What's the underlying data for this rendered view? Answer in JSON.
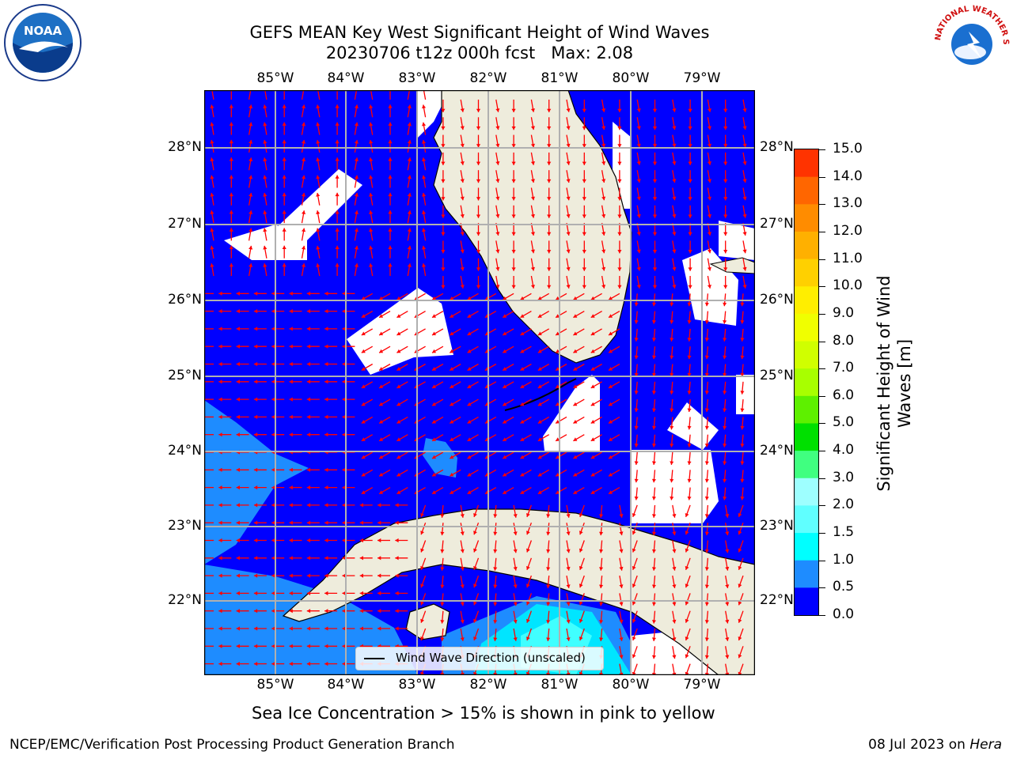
{
  "title": {
    "line1": "GEFS MEAN Key West Significant Height of Wind Waves",
    "line2": "20230706 t12z 000h fcst   Max: 2.08"
  },
  "map": {
    "lon_labels": [
      "85°W",
      "84°W",
      "83°W",
      "82°W",
      "81°W",
      "80°W",
      "79°W"
    ],
    "lat_labels": [
      "28°N",
      "27°N",
      "26°N",
      "25°N",
      "24°N",
      "23°N",
      "22°N"
    ],
    "legend_text": "Wind Wave Direction (unscaled)",
    "land_color": "#eeecdc",
    "ocean_color": "#0000ff",
    "arrow_color": "#ff0000",
    "grid_color": "#b0b0b0"
  },
  "colorbar": {
    "label": "Significant Height of Wind Waves [m]",
    "ticks": [
      "15.0",
      "14.0",
      "13.0",
      "12.0",
      "11.0",
      "10.0",
      "9.0",
      "8.0",
      "7.0",
      "6.0",
      "5.0",
      "4.0",
      "3.0",
      "2.0",
      "1.5",
      "1.0",
      "0.5",
      "0.0"
    ],
    "colors": [
      "#ff0000",
      "#ff2000",
      "#ff4000",
      "#ff6000",
      "#ff8000",
      "#ffa000",
      "#ffc000",
      "#ffe000",
      "#ffff00",
      "#e0ff00",
      "#c0ff00",
      "#a0ff00",
      "#60f000",
      "#30e000",
      "#00d000",
      "#00e000",
      "#40ff80",
      "#60ff90",
      "#a0ffff",
      "#60ffff",
      "#30ffff",
      "#00ffff",
      "#1e8cff",
      "#0000ff"
    ]
  },
  "subtitle": "Sea Ice Concentration > 15% is shown in pink to yellow",
  "footer": {
    "left": "NCEP/EMC/Verification Post Processing Product Generation Branch",
    "right_date": "08 Jul 2023 on ",
    "right_host": "Hera"
  },
  "logos": {
    "left": "NOAA",
    "right": "NATIONAL WEATHER SERVICE"
  }
}
